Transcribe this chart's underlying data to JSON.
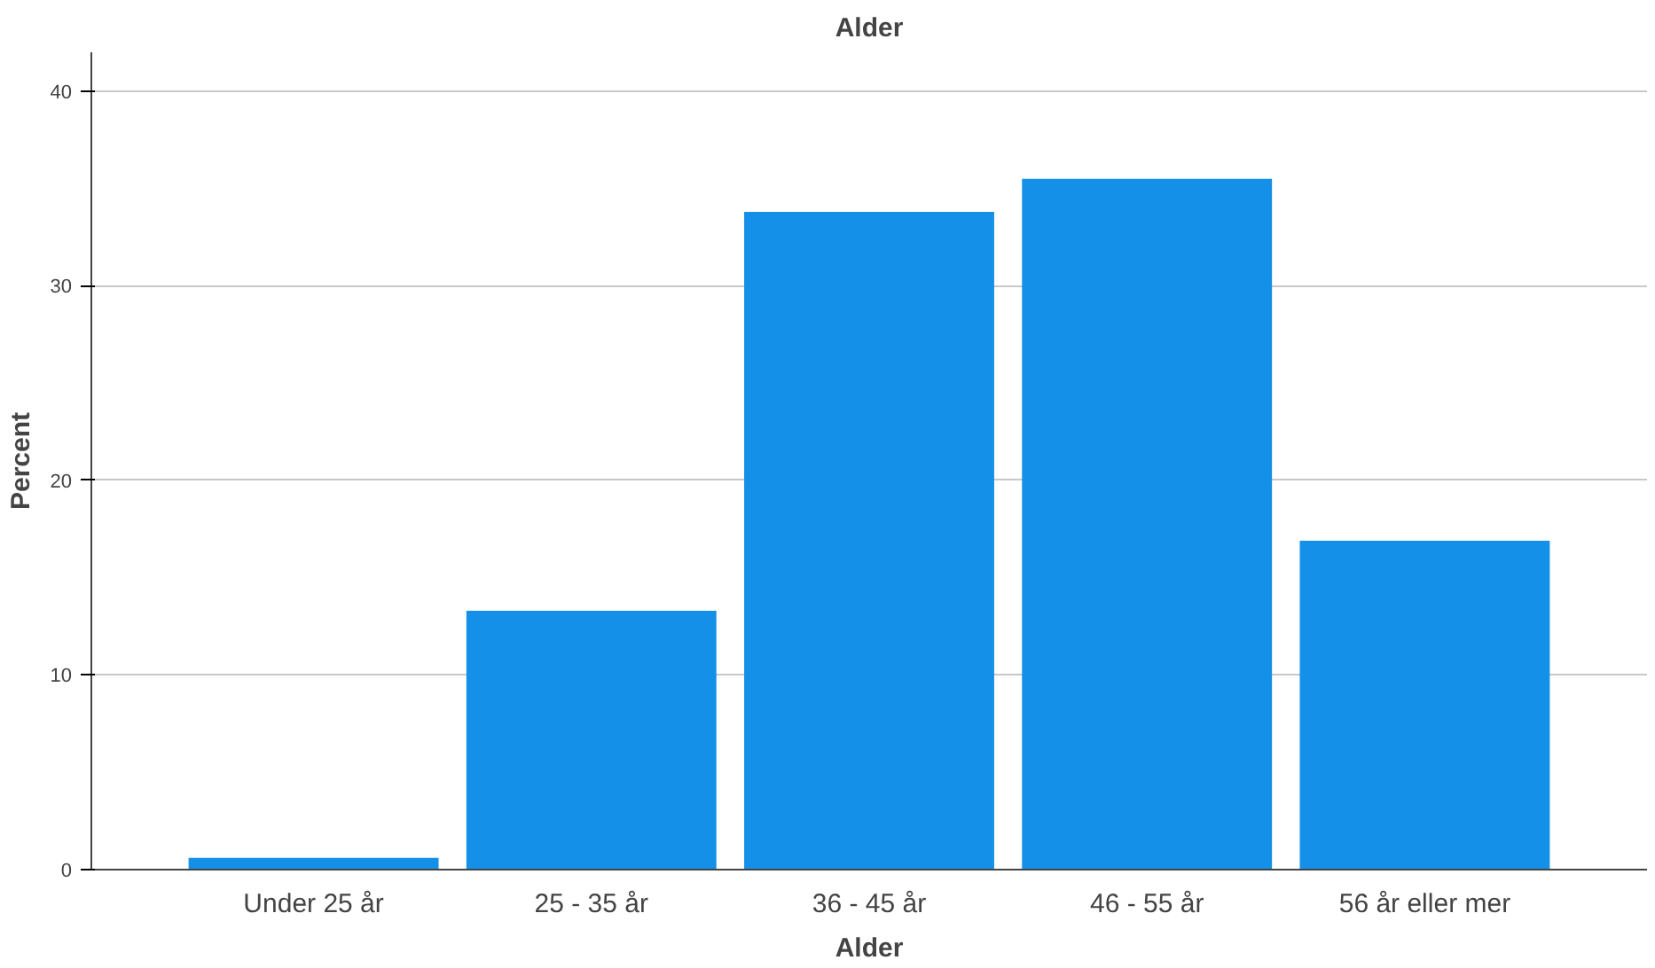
{
  "chart_data": {
    "type": "bar",
    "title": "Alder",
    "xlabel": "Alder",
    "ylabel": "Percent",
    "categories": [
      "Under 25 år",
      "25 - 35 år",
      "36 - 45 år",
      "46 - 55 år",
      "56 år eller mer"
    ],
    "values": [
      0.6,
      13.3,
      33.8,
      35.5,
      16.9
    ],
    "color": "#1490e8",
    "ylim": [
      0,
      42
    ],
    "yticks": [
      0,
      10,
      20,
      30,
      40
    ],
    "grid": "y"
  }
}
